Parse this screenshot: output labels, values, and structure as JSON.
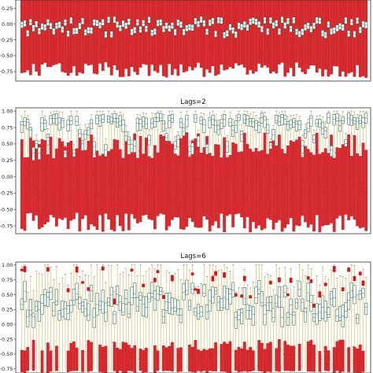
{
  "chart_data": [
    {
      "type": "box",
      "title": "",
      "xlabel": "",
      "ylabel": "",
      "ylim": [
        -0.9,
        0.38
      ],
      "yticks": [
        0.25,
        0.0,
        -0.25,
        -0.5,
        -0.75
      ],
      "ytick_labels": [
        "0.25",
        "0.00",
        "−0.25",
        "−0.50",
        "−0.75"
      ],
      "n_boxes": 120,
      "box_color": "#2e6b4e",
      "whisker_color": "#d9a033",
      "outlier_color": "#d0191f",
      "grid": false
    },
    {
      "type": "box",
      "title": "Lags=2",
      "xlabel": "",
      "ylabel": "",
      "ylim": [
        -0.87,
        1.05
      ],
      "yticks": [
        1.0,
        0.75,
        0.5,
        0.25,
        0.0,
        -0.25,
        -0.5,
        -0.75
      ],
      "ytick_labels": [
        "1.00",
        "0.75",
        "0.50",
        "0.25",
        "0.00",
        "−0.25",
        "−0.50",
        "−0.75"
      ],
      "n_boxes": 120,
      "box_color": "#2e6b4e",
      "whisker_color": "#d9a033",
      "outlier_color": "#d0191f",
      "grid": false
    },
    {
      "type": "box",
      "title": "Lags=6",
      "xlabel": "",
      "ylabel": "",
      "ylim": [
        -0.82,
        1.05
      ],
      "yticks": [
        1.0,
        0.75,
        0.5,
        0.25,
        0.0,
        -0.25,
        -0.5,
        -0.75
      ],
      "ytick_labels": [
        "1.00",
        "0.75",
        "0.50",
        "0.25",
        "0.00",
        "−0.25",
        "−0.50",
        "−0.75"
      ],
      "n_boxes": 120,
      "box_color": "#2e6b4e",
      "whisker_color": "#d9a033",
      "outlier_color": "#d0191f",
      "grid": false
    }
  ]
}
